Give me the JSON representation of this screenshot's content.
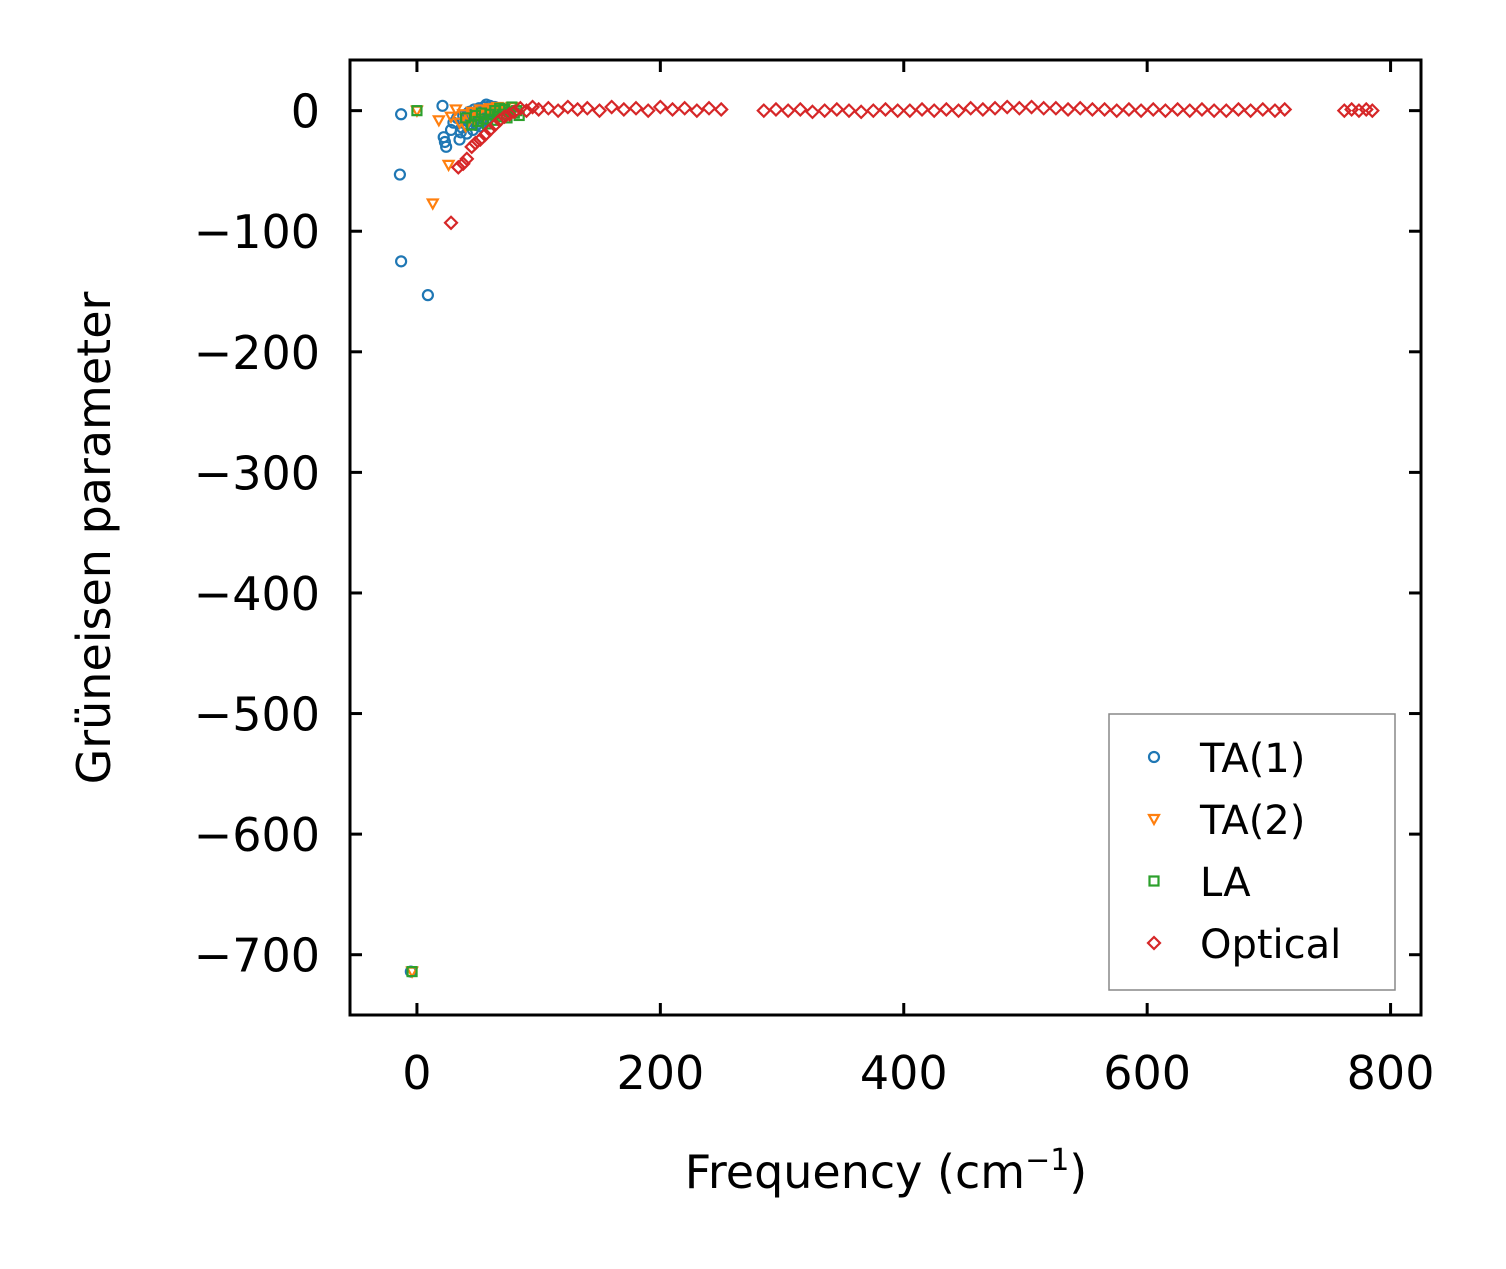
{
  "chart_data": {
    "type": "scatter",
    "title": "",
    "xlabel": "Frequency (cm",
    "xlabel_sup": "−1",
    "xlabel_suffix": ")",
    "ylabel": "Grüneisen parameter",
    "xlim": [
      -55,
      825
    ],
    "ylim": [
      -750,
      42
    ],
    "xticks": [
      0,
      200,
      400,
      600,
      800
    ],
    "xtick_labels": [
      "0",
      "200",
      "400",
      "600",
      "800"
    ],
    "yticks": [
      0,
      -100,
      -200,
      -300,
      -400,
      -500,
      -600,
      -700
    ],
    "ytick_labels": [
      "0",
      "−100",
      "−200",
      "−300",
      "−400",
      "−500",
      "−600",
      "−700"
    ],
    "grid": false,
    "legend_position": "bottom-right",
    "series": [
      {
        "name": "TA(1)",
        "marker": "circle",
        "color": "#1f77b4",
        "points": [
          [
            -5,
            -714
          ],
          [
            -13,
            -125
          ],
          [
            9,
            -153
          ],
          [
            -14,
            -53
          ],
          [
            -13,
            -3
          ],
          [
            21,
            4
          ],
          [
            22,
            -22
          ],
          [
            24,
            -30
          ],
          [
            23,
            -26
          ],
          [
            28,
            -16
          ],
          [
            30,
            -10
          ],
          [
            33,
            -6
          ],
          [
            35,
            -24
          ],
          [
            37,
            -14
          ],
          [
            38,
            -4
          ],
          [
            40,
            -8
          ],
          [
            41,
            -19
          ],
          [
            42,
            -2
          ],
          [
            44,
            -11
          ],
          [
            45,
            -5
          ],
          [
            46,
            -16
          ],
          [
            47,
            1
          ],
          [
            48,
            -7
          ],
          [
            49,
            -12
          ],
          [
            50,
            -3
          ],
          [
            51,
            2
          ],
          [
            52,
            -9
          ],
          [
            53,
            -1
          ],
          [
            54,
            -6
          ],
          [
            55,
            3
          ],
          [
            56,
            -4
          ],
          [
            57,
            5
          ],
          [
            58,
            -2
          ],
          [
            59,
            1
          ],
          [
            60,
            4
          ],
          [
            61,
            -1
          ],
          [
            62,
            2
          ],
          [
            63,
            0
          ],
          [
            64,
            3
          ],
          [
            65,
            1
          ],
          [
            43,
            -1
          ],
          [
            47,
            -9
          ],
          [
            49,
            -3
          ],
          [
            52,
            -13
          ],
          [
            54,
            0
          ],
          [
            57,
            -8
          ],
          [
            59,
            2
          ],
          [
            36,
            -18
          ]
        ]
      },
      {
        "name": "TA(2)",
        "marker": "triangle_down",
        "color": "#ff7f0e",
        "points": [
          [
            -4,
            -714
          ],
          [
            0,
            0
          ],
          [
            13,
            -77
          ],
          [
            18,
            -8
          ],
          [
            26,
            -45
          ],
          [
            28,
            -5
          ],
          [
            32,
            1
          ],
          [
            35,
            -10
          ],
          [
            38,
            -3
          ],
          [
            40,
            -13
          ],
          [
            43,
            -6
          ],
          [
            45,
            -1
          ],
          [
            47,
            -8
          ],
          [
            50,
            -2
          ],
          [
            52,
            1
          ],
          [
            55,
            -4
          ],
          [
            58,
            0
          ],
          [
            60,
            2
          ],
          [
            63,
            -1
          ],
          [
            66,
            3
          ],
          [
            69,
            1
          ],
          [
            72,
            2
          ],
          [
            75,
            0
          ],
          [
            78,
            3
          ]
        ]
      },
      {
        "name": "LA",
        "marker": "square",
        "color": "#2ca02c",
        "points": [
          [
            -4,
            -714
          ],
          [
            0,
            0
          ],
          [
            40,
            -6
          ],
          [
            45,
            -12
          ],
          [
            48,
            -4
          ],
          [
            50,
            -9
          ],
          [
            53,
            -2
          ],
          [
            55,
            -7
          ],
          [
            58,
            -11
          ],
          [
            60,
            -3
          ],
          [
            62,
            -8
          ],
          [
            64,
            0
          ],
          [
            66,
            -5
          ],
          [
            68,
            2
          ],
          [
            70,
            -3
          ],
          [
            72,
            1
          ],
          [
            74,
            -6
          ],
          [
            76,
            -1
          ],
          [
            78,
            3
          ],
          [
            80,
            -2
          ],
          [
            82,
            0
          ],
          [
            84,
            -4
          ]
        ]
      },
      {
        "name": "Optical",
        "marker": "diamond",
        "color": "#d62728",
        "points": [
          [
            28,
            -93
          ],
          [
            34,
            -47
          ],
          [
            38,
            -44
          ],
          [
            41,
            -40
          ],
          [
            45,
            -30
          ],
          [
            48,
            -27
          ],
          [
            52,
            -24
          ],
          [
            56,
            -20
          ],
          [
            60,
            -16
          ],
          [
            64,
            -12
          ],
          [
            68,
            -8
          ],
          [
            72,
            -5
          ],
          [
            76,
            -3
          ],
          [
            80,
            -1
          ],
          [
            85,
            2
          ],
          [
            90,
            0
          ],
          [
            95,
            3
          ],
          [
            100,
            1
          ],
          [
            108,
            2
          ],
          [
            116,
            0
          ],
          [
            124,
            3
          ],
          [
            132,
            1
          ],
          [
            140,
            2
          ],
          [
            150,
            0
          ],
          [
            160,
            3
          ],
          [
            170,
            1
          ],
          [
            180,
            2
          ],
          [
            190,
            0
          ],
          [
            200,
            3
          ],
          [
            210,
            1
          ],
          [
            220,
            2
          ],
          [
            230,
            0
          ],
          [
            240,
            2
          ],
          [
            250,
            1
          ],
          [
            285,
            0
          ],
          [
            295,
            1
          ],
          [
            305,
            0
          ],
          [
            315,
            1
          ],
          [
            325,
            -1
          ],
          [
            335,
            0
          ],
          [
            345,
            1
          ],
          [
            355,
            0
          ],
          [
            365,
            -1
          ],
          [
            375,
            0
          ],
          [
            385,
            1
          ],
          [
            395,
            0
          ],
          [
            405,
            0
          ],
          [
            415,
            1
          ],
          [
            425,
            0
          ],
          [
            435,
            1
          ],
          [
            445,
            0
          ],
          [
            455,
            2
          ],
          [
            465,
            1
          ],
          [
            475,
            2
          ],
          [
            485,
            3
          ],
          [
            495,
            2
          ],
          [
            505,
            3
          ],
          [
            515,
            2
          ],
          [
            525,
            2
          ],
          [
            535,
            1
          ],
          [
            545,
            2
          ],
          [
            555,
            1
          ],
          [
            565,
            1
          ],
          [
            575,
            0
          ],
          [
            585,
            1
          ],
          [
            595,
            0
          ],
          [
            605,
            1
          ],
          [
            615,
            0
          ],
          [
            625,
            1
          ],
          [
            635,
            0
          ],
          [
            645,
            1
          ],
          [
            655,
            0
          ],
          [
            665,
            0
          ],
          [
            675,
            1
          ],
          [
            685,
            0
          ],
          [
            695,
            1
          ],
          [
            705,
            0
          ],
          [
            713,
            1
          ],
          [
            762,
            0
          ],
          [
            768,
            1
          ],
          [
            774,
            0
          ],
          [
            780,
            1
          ],
          [
            785,
            0
          ]
        ]
      }
    ]
  }
}
